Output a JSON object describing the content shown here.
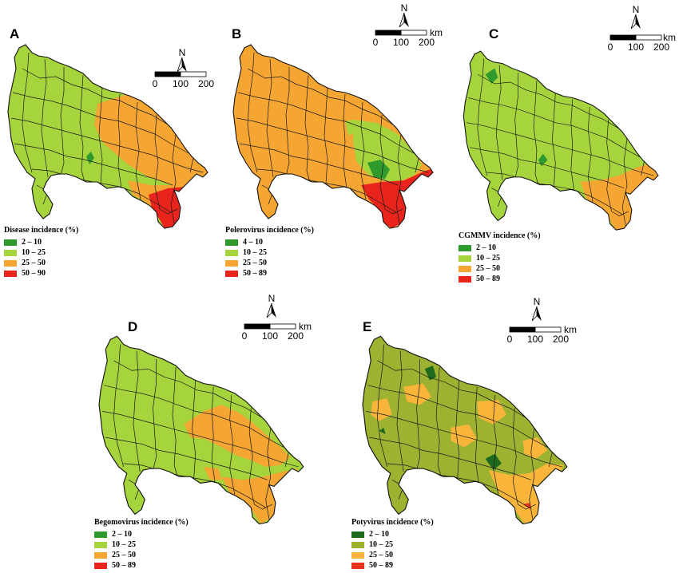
{
  "colors": {
    "dark_green": "#2e9a2e",
    "light_green": "#a6d43c",
    "orange": "#f5a532",
    "red": "#e8241c",
    "potyvirus_dark": "#1f6a1f",
    "potyvirus_olive": "#9eb232",
    "potyvirus_orange": "#f9b53a",
    "potyvirus_red": "#e8341c"
  },
  "scale": {
    "north_label": "N",
    "unit": "km",
    "ticks": [
      "0",
      "100",
      "200"
    ]
  },
  "panels": [
    {
      "letter": "A",
      "legend_title": "Disease incidence (%)",
      "classes": [
        {
          "label": "2 – 10",
          "color": "#2e9a2e"
        },
        {
          "label": "10 – 25",
          "color": "#a6d43c"
        },
        {
          "label": "25 – 50",
          "color": "#f5a532"
        },
        {
          "label": "50 – 90",
          "color": "#e8241c"
        }
      ]
    },
    {
      "letter": "B",
      "legend_title": "Polerovirus incidence (%)",
      "classes": [
        {
          "label": "4 – 10",
          "color": "#2e9a2e"
        },
        {
          "label": "10 – 25",
          "color": "#a6d43c"
        },
        {
          "label": "25 – 50",
          "color": "#f5a532"
        },
        {
          "label": "50 – 89",
          "color": "#e8241c"
        }
      ]
    },
    {
      "letter": "C",
      "legend_title": "CGMMV incidence (%)",
      "classes": [
        {
          "label": "2 – 10",
          "color": "#2e9a2e"
        },
        {
          "label": "10 – 25",
          "color": "#a6d43c"
        },
        {
          "label": "25 – 50",
          "color": "#f5a532"
        },
        {
          "label": "50 – 89",
          "color": "#e8241c"
        }
      ]
    },
    {
      "letter": "D",
      "legend_title": "Begomovirus incidence (%)",
      "classes": [
        {
          "label": "2 – 10",
          "color": "#2e9a2e"
        },
        {
          "label": "10 – 25",
          "color": "#a6d43c"
        },
        {
          "label": "25 – 50",
          "color": "#f5a532"
        },
        {
          "label": "50 – 89",
          "color": "#e8241c"
        }
      ]
    },
    {
      "letter": "E",
      "legend_title": "Potyvirus incidence (%)",
      "classes": [
        {
          "label": "2 – 10",
          "color": "#1f6a1f"
        },
        {
          "label": "10 – 25",
          "color": "#9eb232"
        },
        {
          "label": "25 – 50",
          "color": "#f9b53a"
        },
        {
          "label": "50 – 89",
          "color": "#e8341c"
        }
      ]
    }
  ]
}
